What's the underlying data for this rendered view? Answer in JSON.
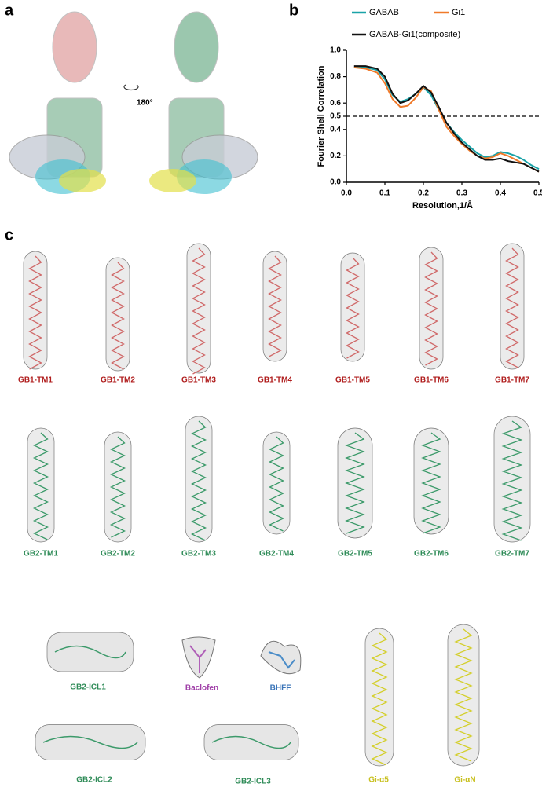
{
  "panel_labels": [
    "a",
    "b",
    "c"
  ],
  "rotation_label": "180°",
  "chart_data": {
    "type": "line",
    "xlabel": "Resolution,1/Å",
    "ylabel": "Fourier Shell Correlation",
    "x": [
      0.02,
      0.05,
      0.08,
      0.1,
      0.12,
      0.14,
      0.16,
      0.18,
      0.2,
      0.22,
      0.24,
      0.26,
      0.28,
      0.3,
      0.32,
      0.34,
      0.36,
      0.38,
      0.4,
      0.42,
      0.44,
      0.46,
      0.48,
      0.5
    ],
    "series": [
      {
        "name": "GABAB",
        "color": "#1aa3a8",
        "values": [
          0.87,
          0.87,
          0.85,
          0.78,
          0.66,
          0.61,
          0.63,
          0.67,
          0.72,
          0.66,
          0.55,
          0.45,
          0.38,
          0.32,
          0.27,
          0.22,
          0.19,
          0.2,
          0.23,
          0.22,
          0.2,
          0.17,
          0.13,
          0.1
        ]
      },
      {
        "name": "Gi1",
        "color": "#f07a2a",
        "values": [
          0.87,
          0.86,
          0.83,
          0.75,
          0.63,
          0.57,
          0.58,
          0.64,
          0.72,
          0.69,
          0.55,
          0.42,
          0.35,
          0.29,
          0.24,
          0.2,
          0.18,
          0.19,
          0.22,
          0.2,
          0.17,
          0.14,
          0.11,
          0.08
        ]
      },
      {
        "name": "GABAB-Gi1(composite)",
        "color": "#111111",
        "values": [
          0.88,
          0.88,
          0.86,
          0.8,
          0.67,
          0.6,
          0.62,
          0.67,
          0.73,
          0.68,
          0.57,
          0.45,
          0.37,
          0.3,
          0.25,
          0.2,
          0.17,
          0.17,
          0.18,
          0.16,
          0.15,
          0.14,
          0.11,
          0.08
        ]
      }
    ],
    "threshold": 0.5,
    "xlim": [
      0,
      0.5
    ],
    "xticks": [
      {
        "value": 0,
        "label": "0.0"
      },
      0.1,
      0.2,
      0.3,
      0.4,
      0.5
    ],
    "ylim": [
      0,
      1
    ],
    "yticks": [
      {
        "value": 0,
        "label": "0.0"
      },
      0.2,
      0.4,
      0.5,
      0.6,
      0.8,
      {
        "value": 1,
        "label": "1.0"
      }
    ]
  },
  "panel_c": {
    "gb1_labels": [
      "GB1-TM1",
      "GB1-TM2",
      "GB1-TM3",
      "GB1-TM4",
      "GB1-TM5",
      "GB1-TM6",
      "GB1-TM7"
    ],
    "gb2_labels": [
      "GB2-TM1",
      "GB2-TM2",
      "GB2-TM3",
      "GB2-TM4",
      "GB2-TM5",
      "GB2-TM6",
      "GB2-TM7"
    ],
    "other_labels": [
      "GB2-ICL1",
      "Baclofen",
      "BHFF",
      "GB2-ICL2",
      "GB2-ICL3",
      "Gi-α5",
      "Gi-αN"
    ]
  }
}
